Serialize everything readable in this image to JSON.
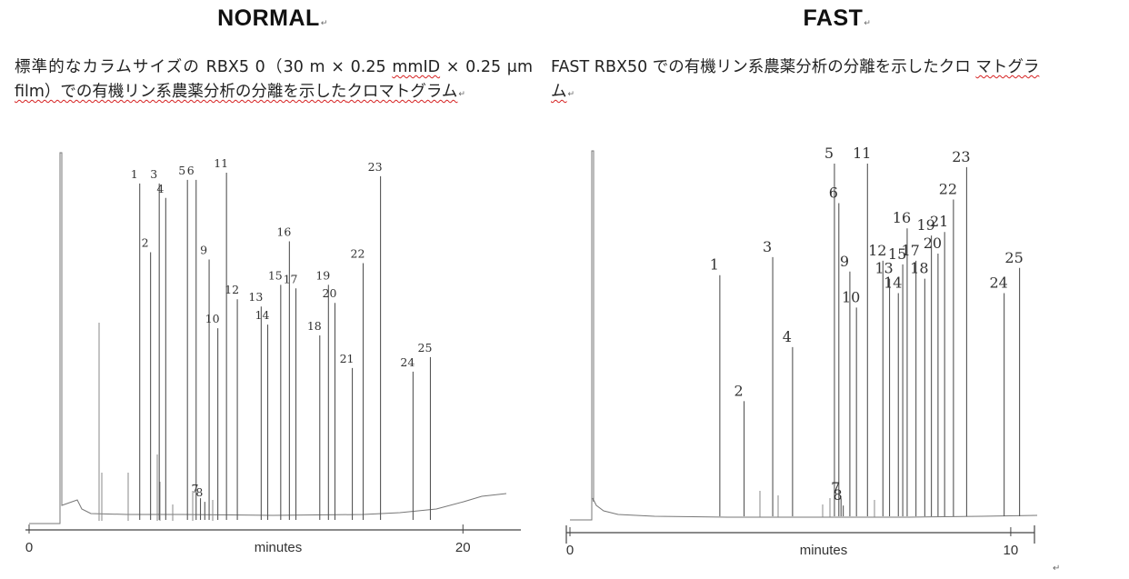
{
  "normal": {
    "heading": "NORMAL",
    "caption_plain": "標準的なカラムサイズの RBX5 0（30 m × 0.25 ",
    "caption_under1": "mmID",
    "caption_mid": " × 0.25 μm ",
    "caption_under2": "film）での有機リン系農薬分析の分離を示した",
    "caption_under3": "クロマトグラム",
    "chart_data": {
      "type": "line",
      "title": "",
      "xlabel": "minutes",
      "ylabel": "",
      "x_ticks": [
        "0",
        "20"
      ],
      "xlim": [
        0,
        22
      ],
      "ylim": [
        0,
        100
      ],
      "peaks": [
        {
          "label": "1",
          "x": 5.1,
          "y": 94
        },
        {
          "label": "2",
          "x": 5.6,
          "y": 75
        },
        {
          "label": "3",
          "x": 6.0,
          "y": 94
        },
        {
          "label": "4",
          "x": 6.3,
          "y": 90
        },
        {
          "label": "5",
          "x": 7.3,
          "y": 95
        },
        {
          "label": "6",
          "x": 7.7,
          "y": 95
        },
        {
          "label": "7",
          "x": 7.9,
          "y": 7
        },
        {
          "label": "8",
          "x": 8.1,
          "y": 6
        },
        {
          "label": "9",
          "x": 8.3,
          "y": 73
        },
        {
          "label": "10",
          "x": 8.7,
          "y": 54
        },
        {
          "label": "11",
          "x": 9.1,
          "y": 97
        },
        {
          "label": "12",
          "x": 9.6,
          "y": 62
        },
        {
          "label": "13",
          "x": 10.7,
          "y": 60
        },
        {
          "label": "14",
          "x": 11.0,
          "y": 55
        },
        {
          "label": "15",
          "x": 11.6,
          "y": 66
        },
        {
          "label": "16",
          "x": 12.0,
          "y": 78
        },
        {
          "label": "17",
          "x": 12.3,
          "y": 65
        },
        {
          "label": "18",
          "x": 13.4,
          "y": 52
        },
        {
          "label": "19",
          "x": 13.8,
          "y": 66
        },
        {
          "label": "20",
          "x": 14.1,
          "y": 61
        },
        {
          "label": "21",
          "x": 14.9,
          "y": 43
        },
        {
          "label": "22",
          "x": 15.4,
          "y": 72
        },
        {
          "label": "23",
          "x": 16.2,
          "y": 96
        },
        {
          "label": "24",
          "x": 17.7,
          "y": 42
        },
        {
          "label": "25",
          "x": 18.5,
          "y": 46
        }
      ]
    }
  },
  "fast": {
    "heading": "FAST",
    "caption_plain": "FAST RBX50 での有機リン系農薬分析の分離を示したクロ ",
    "caption_under1": "マトグラ",
    "caption_under2": "ム",
    "chart_data": {
      "type": "line",
      "title": "",
      "xlabel": "minutes",
      "ylabel": "",
      "x_ticks": [
        "0",
        "10"
      ],
      "xlim": [
        0,
        10.6
      ],
      "ylim": [
        0,
        100
      ],
      "peaks": [
        {
          "label": "1",
          "x": 3.4,
          "y": 68
        },
        {
          "label": "2",
          "x": 3.95,
          "y": 33
        },
        {
          "label": "3",
          "x": 4.6,
          "y": 73
        },
        {
          "label": "4",
          "x": 5.05,
          "y": 48
        },
        {
          "label": "5",
          "x": 6.0,
          "y": 99
        },
        {
          "label": "6",
          "x": 6.1,
          "y": 88
        },
        {
          "label": "7",
          "x": 6.15,
          "y": 6
        },
        {
          "label": "8",
          "x": 6.2,
          "y": 4
        },
        {
          "label": "9",
          "x": 6.35,
          "y": 69
        },
        {
          "label": "10",
          "x": 6.5,
          "y": 59
        },
        {
          "label": "11",
          "x": 6.75,
          "y": 99
        },
        {
          "label": "12",
          "x": 7.1,
          "y": 72
        },
        {
          "label": "13",
          "x": 7.25,
          "y": 67
        },
        {
          "label": "14",
          "x": 7.45,
          "y": 63
        },
        {
          "label": "15",
          "x": 7.55,
          "y": 71
        },
        {
          "label": "16",
          "x": 7.65,
          "y": 81
        },
        {
          "label": "17",
          "x": 7.85,
          "y": 72
        },
        {
          "label": "18",
          "x": 8.05,
          "y": 67
        },
        {
          "label": "19",
          "x": 8.2,
          "y": 79
        },
        {
          "label": "20",
          "x": 8.35,
          "y": 74
        },
        {
          "label": "21",
          "x": 8.5,
          "y": 80
        },
        {
          "label": "22",
          "x": 8.7,
          "y": 89
        },
        {
          "label": "23",
          "x": 9.0,
          "y": 98
        },
        {
          "label": "24",
          "x": 9.85,
          "y": 63
        },
        {
          "label": "25",
          "x": 10.2,
          "y": 70
        }
      ]
    }
  }
}
